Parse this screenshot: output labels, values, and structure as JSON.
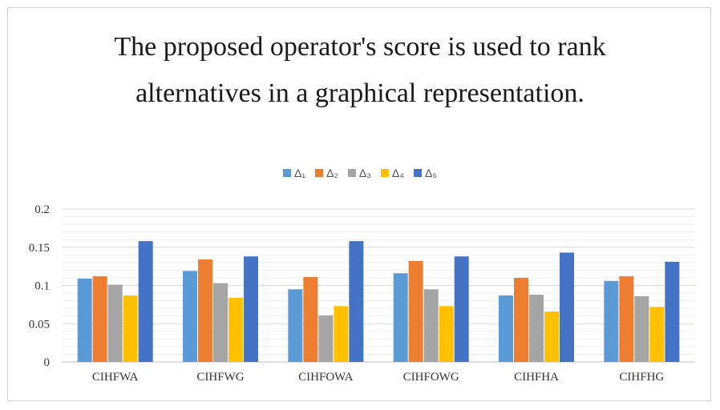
{
  "title_line1": "The proposed operator's score is used to rank",
  "title_line2": "alternatives in a graphical representation.",
  "chart_data": {
    "type": "bar",
    "categories": [
      "CIHFWA",
      "CIHFWG",
      "CIHFOWA",
      "CIHFOWG",
      "CIHFHA",
      "CIHFHG"
    ],
    "series": [
      {
        "name": "Δ₁",
        "color": "#5b9bd5",
        "values": [
          0.109,
          0.119,
          0.095,
          0.116,
          0.087,
          0.106
        ]
      },
      {
        "name": "Δ₂",
        "color": "#ed7d31",
        "values": [
          0.112,
          0.134,
          0.111,
          0.132,
          0.11,
          0.112
        ]
      },
      {
        "name": "Δ₃",
        "color": "#a5a5a5",
        "values": [
          0.101,
          0.103,
          0.061,
          0.095,
          0.088,
          0.086
        ]
      },
      {
        "name": "Δ₄",
        "color": "#ffc000",
        "values": [
          0.087,
          0.084,
          0.073,
          0.073,
          0.066,
          0.072
        ]
      },
      {
        "name": "Δ₅",
        "color": "#4472c4",
        "values": [
          0.158,
          0.138,
          0.158,
          0.138,
          0.143,
          0.131
        ]
      }
    ],
    "ylim": [
      0,
      0.2
    ],
    "yticks": [
      "0",
      "0.05",
      "0.1",
      "0.15",
      "0.2"
    ],
    "ytick_values": [
      0,
      0.05,
      0.1,
      0.15,
      0.2
    ],
    "grid": true,
    "legend_position": "top-center"
  }
}
